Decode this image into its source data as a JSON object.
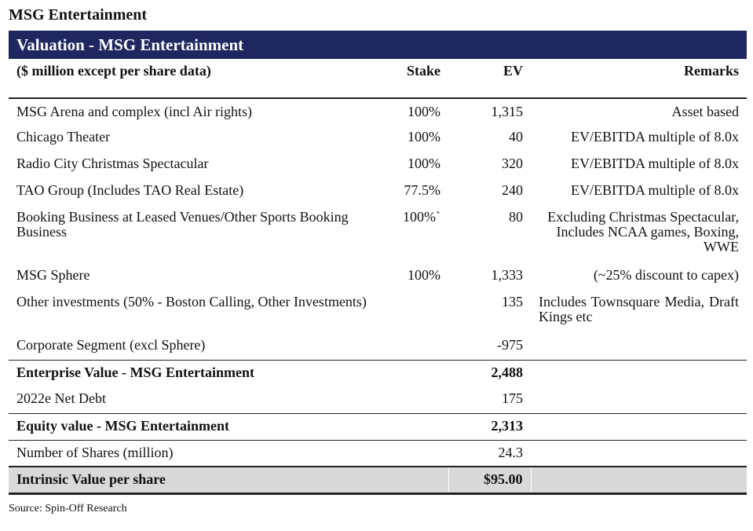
{
  "page_title": "MSG Entertainment",
  "banner_title": "Valuation - MSG Entertainment",
  "columns": {
    "item": "($ million except per share data)",
    "stake": "Stake",
    "ev": "EV",
    "remarks": "Remarks"
  },
  "rows": [
    {
      "item": "MSG Arena and complex (incl Air rights)",
      "stake": "100%",
      "ev": "1,315",
      "remarks": "Asset based"
    },
    {
      "item": "Chicago Theater",
      "stake": "100%",
      "ev": "40",
      "remarks": "EV/EBITDA multiple of 8.0x"
    },
    {
      "item": "Radio City Christmas Spectacular",
      "stake": "100%",
      "ev": "320",
      "remarks": "EV/EBITDA multiple of 8.0x"
    },
    {
      "item": "TAO Group (Includes TAO Real Estate)",
      "stake": "77.5%",
      "ev": "240",
      "remarks": "EV/EBITDA multiple of 8.0x"
    },
    {
      "item": "Booking Business at Leased Venues/Other Sports Booking Business",
      "stake": "100%`",
      "ev": "80",
      "remarks": "Excluding Christmas Spectacular, Includes NCAA games, Boxing, WWE"
    },
    {
      "item": "MSG Sphere",
      "stake": "100%",
      "ev": "1,333",
      "remarks": "(~25% discount to capex)"
    },
    {
      "item": "Other investments (50% - Boston Calling, Other Investments)",
      "stake": "",
      "ev": "135",
      "remarks": "Includes Townsquare Media, Draft Kings etc"
    },
    {
      "item": "Corporate Segment (excl Sphere)",
      "stake": "",
      "ev": "-975",
      "remarks": ""
    }
  ],
  "enterprise_value": {
    "label": "Enterprise Value - MSG Entertainment",
    "value": "2,488"
  },
  "net_debt": {
    "label": "2022e Net Debt",
    "value": "175"
  },
  "equity_value": {
    "label": "Equity value - MSG Entertainment",
    "value": "2,313"
  },
  "shares": {
    "label": "Number of Shares (million)",
    "value": "24.3"
  },
  "intrinsic_value": {
    "label": "Intrinsic Value per share",
    "value": "$95.00"
  },
  "source": "Source: Spin-Off Research"
}
